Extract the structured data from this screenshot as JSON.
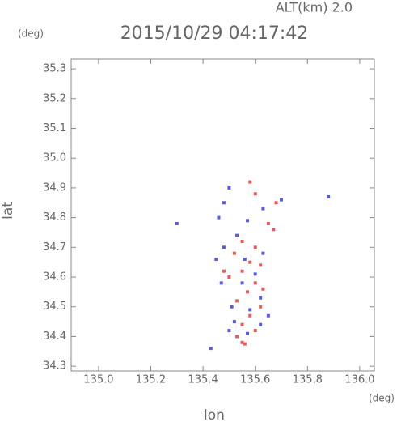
{
  "chart_data": {
    "type": "scatter",
    "title": "2015/10/29 04:17:42",
    "subtitle": "ALT(km) 2.0",
    "x_label": "lon",
    "y_label": "lat",
    "x_unit": "(deg)",
    "y_unit": "(deg)",
    "xlim": [
      134.895,
      136.056
    ],
    "ylim": [
      34.284,
      35.333
    ],
    "xticks": [
      {
        "value": 135.0,
        "label": "135.0"
      },
      135.2,
      135.4,
      135.6,
      135.8,
      {
        "value": 136.0,
        "label": "136.0"
      }
    ],
    "yticks": [
      34.3,
      34.4,
      34.5,
      34.6,
      34.7,
      34.8,
      34.9,
      {
        "value": 35.0,
        "label": "35.0"
      },
      35.1,
      35.2,
      35.3
    ],
    "series": [
      {
        "color": "#e85a5a",
        "x": [
          135.58,
          135.6,
          135.68,
          135.65,
          135.67,
          135.55,
          135.6,
          135.52,
          135.58,
          135.62,
          135.55,
          135.5,
          135.6,
          135.57,
          135.53,
          135.62,
          135.58,
          135.55,
          135.6,
          135.53,
          135.55,
          135.56,
          135.48,
          135.63
        ],
        "y": [
          34.92,
          34.88,
          34.85,
          34.78,
          34.76,
          34.72,
          34.7,
          34.68,
          34.65,
          34.64,
          34.62,
          34.6,
          34.58,
          34.55,
          34.52,
          34.5,
          34.47,
          34.44,
          34.42,
          34.4,
          34.38,
          34.375,
          34.62,
          34.56
        ]
      },
      {
        "color": "#5a5ae8",
        "x": [
          135.5,
          135.48,
          135.63,
          135.7,
          135.88,
          135.46,
          135.57,
          135.53,
          135.48,
          135.63,
          135.56,
          135.45,
          135.6,
          135.47,
          135.55,
          135.62,
          135.51,
          135.58,
          135.65,
          135.52,
          135.62,
          135.57,
          135.5,
          135.43,
          135.3
        ],
        "y": [
          34.9,
          34.85,
          34.83,
          34.86,
          34.87,
          34.8,
          34.79,
          34.74,
          34.7,
          34.68,
          34.66,
          34.66,
          34.61,
          34.58,
          34.58,
          34.53,
          34.5,
          34.49,
          34.47,
          34.45,
          34.44,
          34.41,
          34.42,
          34.36,
          34.78
        ]
      }
    ]
  }
}
